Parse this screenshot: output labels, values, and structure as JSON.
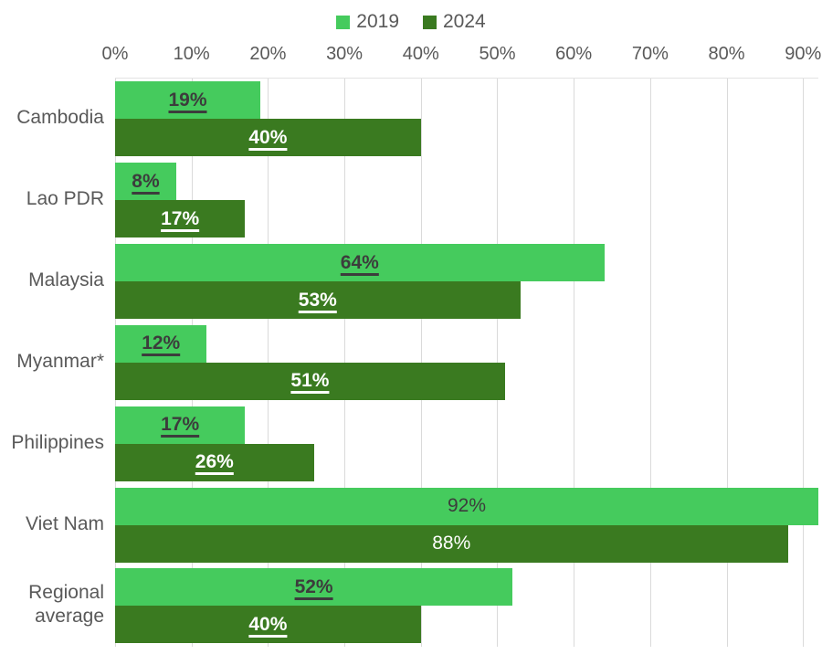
{
  "chart_data": {
    "type": "bar",
    "orientation": "horizontal",
    "legend_position": "top",
    "axis": {
      "position": "top",
      "min": 0,
      "max": 92,
      "tick_values": [
        0,
        10,
        20,
        30,
        40,
        50,
        60,
        70,
        80,
        90
      ],
      "tick_labels": [
        "0%",
        "10%",
        "20%",
        "30%",
        "40%",
        "50%",
        "60%",
        "70%",
        "80%",
        "90%"
      ],
      "grid": true
    },
    "categories": [
      "Cambodia",
      "Lao PDR",
      "Malaysia",
      "Myanmar*",
      "Philippines",
      "Viet Nam",
      "Regional average"
    ],
    "series": [
      {
        "name": "2019",
        "color": "#45CB5D",
        "label_color": "#3C3C3C",
        "values": [
          19,
          8,
          64,
          12,
          17,
          92,
          52
        ],
        "labels": [
          "19%",
          "8%",
          "64%",
          "12%",
          "17%",
          "92%",
          "52%"
        ]
      },
      {
        "name": "2024",
        "color": "#3A7A20",
        "label_color": "#FFFFFF",
        "values": [
          40,
          17,
          53,
          51,
          26,
          88,
          40
        ],
        "labels": [
          "40%",
          "17%",
          "53%",
          "51%",
          "26%",
          "88%",
          "40%"
        ]
      }
    ],
    "label_styles": [
      "underline",
      "underline",
      "underline",
      "underline",
      "underline",
      "plain",
      "underline"
    ],
    "colors": {
      "background": "#FFFFFF",
      "gridline": "#DADADA",
      "axis_text": "#595959",
      "category_text": "#595959",
      "legend_text": "#595959"
    }
  }
}
